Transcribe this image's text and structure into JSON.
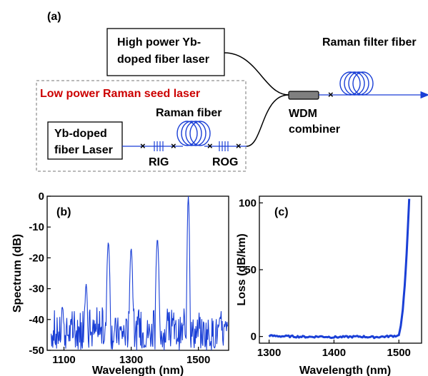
{
  "panel_a": {
    "label": "(a)",
    "high_power_box": [
      "High power Yb-",
      "doped fiber laser"
    ],
    "raman_filter_label": "Raman filter fiber",
    "wdm_label": [
      "WDM",
      "combiner"
    ],
    "seed_title": "Low power Raman seed laser",
    "raman_fiber_label": "Raman fiber",
    "yb_box": [
      "Yb-doped",
      "fiber Laser"
    ],
    "rig_label": "RIG",
    "rog_label": "ROG",
    "colors": {
      "fiber": "#1a3fd6",
      "seed_title": "#cc0000",
      "coupler": "#7f7f7f"
    }
  },
  "chart_data": [
    {
      "type": "line",
      "panel_label": "(b)",
      "xlabel": "Wavelength (nm)",
      "ylabel": "Spectrum (dB)",
      "xlim": [
        1050,
        1590
      ],
      "ylim": [
        -50,
        0
      ],
      "xticks": [
        "1100",
        "1300",
        "1500"
      ],
      "xtick_values": [
        1100,
        1300,
        1500
      ],
      "yticks": [
        "0",
        "-10",
        "-20",
        "-30",
        "-40",
        "-50"
      ],
      "ytick_values": [
        0,
        -10,
        -20,
        -30,
        -40,
        -50
      ],
      "noise_floor": [
        -50,
        -40
      ],
      "peaks": [
        {
          "x": 1096,
          "y": -36
        },
        {
          "x": 1166,
          "y": -28.5
        },
        {
          "x": 1232,
          "y": -15
        },
        {
          "x": 1300,
          "y": -17
        },
        {
          "x": 1378,
          "y": -14
        },
        {
          "x": 1470,
          "y": 0
        }
      ],
      "color": "#1a3fd6"
    },
    {
      "type": "line",
      "panel_label": "(c)",
      "xlabel": "Wavelength (nm)",
      "ylabel": "Loss (dB/km)",
      "xlim": [
        1285,
        1535
      ],
      "ylim": [
        -5,
        105
      ],
      "xticks": [
        "1300",
        "1400",
        "1500"
      ],
      "xtick_values": [
        1300,
        1400,
        1500
      ],
      "yticks": [
        "100",
        "50",
        "0"
      ],
      "ytick_values": [
        100,
        50,
        0
      ],
      "x": [
        1300,
        1320,
        1340,
        1360,
        1380,
        1400,
        1420,
        1440,
        1460,
        1480,
        1495,
        1500,
        1503,
        1506,
        1509,
        1512,
        1514,
        1516
      ],
      "y": [
        0.5,
        0.2,
        0,
        -0.3,
        0,
        -0.5,
        -0.3,
        0,
        -0.5,
        0,
        0.5,
        1,
        8,
        20,
        38,
        62,
        82,
        103
      ],
      "color": "#1a3fd6"
    }
  ]
}
